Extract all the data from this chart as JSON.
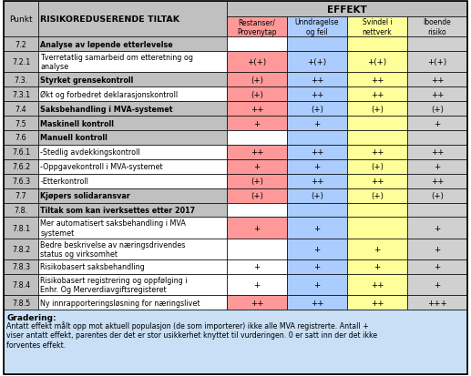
{
  "title": "EFFEKT",
  "col_headers_main": [
    "Punkt",
    "RISIKOREDUSERENDE TILTAK"
  ],
  "sub_headers": [
    "Restanser/\nProvenytap",
    "Unndragelse\nog feil",
    "Svindel i\nnettverk",
    "Iboende\nrisiko"
  ],
  "sub_header_colors": [
    "#ff9999",
    "#aaccff",
    "#ffff99",
    "#d0d0d0"
  ],
  "rows": [
    {
      "punkt": "7.2",
      "tiltak": "Analyse av løpende etterlevelse",
      "bold": true,
      "vals": [
        "",
        "",
        "",
        ""
      ],
      "row_color": [
        "#ffffff",
        "#aaccff",
        "#ffff99",
        "#d0d0d0"
      ]
    },
    {
      "punkt": "7.2.1",
      "tiltak": "Tverretatlig samarbeid om etteretning og\nanalyse",
      "bold": false,
      "vals": [
        "+(+)",
        "+(+)",
        "+(+)",
        "+(+)"
      ],
      "row_color": [
        "#ff9999",
        "#aaccff",
        "#ffff99",
        "#d0d0d0"
      ]
    },
    {
      "punkt": "7.3.",
      "tiltak": "Styrket grensekontroll",
      "bold": true,
      "vals": [
        "(+)",
        "++",
        "++",
        "++"
      ],
      "row_color": [
        "#ff9999",
        "#aaccff",
        "#ffff99",
        "#d0d0d0"
      ]
    },
    {
      "punkt": "7.3.1",
      "tiltak": "Økt og forbedret deklarasjonskontroll",
      "bold": false,
      "vals": [
        "(+)",
        "++",
        "++",
        "++"
      ],
      "row_color": [
        "#ff9999",
        "#aaccff",
        "#ffff99",
        "#d0d0d0"
      ]
    },
    {
      "punkt": "7.4",
      "tiltak": "Saksbehandling i MVA-systemet",
      "bold": true,
      "vals": [
        "++",
        "(+)",
        "(+)",
        "(+)"
      ],
      "row_color": [
        "#ff9999",
        "#aaccff",
        "#ffff99",
        "#d0d0d0"
      ]
    },
    {
      "punkt": "7.5",
      "tiltak": "Maskinell kontroll",
      "bold": true,
      "vals": [
        "+",
        "+",
        "",
        "+"
      ],
      "row_color": [
        "#ff9999",
        "#aaccff",
        "#ffff99",
        "#d0d0d0"
      ]
    },
    {
      "punkt": "7.6",
      "tiltak": "Manuell kontroll",
      "bold": true,
      "vals": [
        "",
        "",
        "",
        ""
      ],
      "row_color": [
        "#ffffff",
        "#aaccff",
        "#ffff99",
        "#d0d0d0"
      ]
    },
    {
      "punkt": "7.6.1",
      "tiltak": "-Stedlig avdekkingskontroll",
      "bold": false,
      "vals": [
        "++",
        "++",
        "++",
        "++"
      ],
      "row_color": [
        "#ff9999",
        "#aaccff",
        "#ffff99",
        "#d0d0d0"
      ]
    },
    {
      "punkt": "7.6.2",
      "tiltak": "-Oppgavekontroll i MVA-systemet",
      "bold": false,
      "vals": [
        "+",
        "+",
        "(+)",
        "+"
      ],
      "row_color": [
        "#ff9999",
        "#aaccff",
        "#ffff99",
        "#d0d0d0"
      ]
    },
    {
      "punkt": "7.6.3",
      "tiltak": "-Etterkontroll",
      "bold": false,
      "vals": [
        "(+)",
        "++",
        "++",
        "++"
      ],
      "row_color": [
        "#ff9999",
        "#aaccff",
        "#ffff99",
        "#d0d0d0"
      ]
    },
    {
      "punkt": "7.7",
      "tiltak": "Kjøpers solidaransvar",
      "bold": true,
      "vals": [
        "(+)",
        "(+)",
        "(+)",
        "(+)"
      ],
      "row_color": [
        "#ff9999",
        "#aaccff",
        "#ffff99",
        "#d0d0d0"
      ]
    },
    {
      "punkt": "7.8.",
      "tiltak": "Tiltak som kan iverksettes etter 2017",
      "bold": true,
      "vals": [
        "",
        "",
        "",
        ""
      ],
      "row_color": [
        "#ffffff",
        "#aaccff",
        "#ffff99",
        "#d0d0d0"
      ]
    },
    {
      "punkt": "7.8.1",
      "tiltak": "Mer automatisert saksbehandling i MVA\nsystemet",
      "bold": false,
      "vals": [
        "+",
        "+",
        "",
        "+"
      ],
      "row_color": [
        "#ff9999",
        "#aaccff",
        "#ffff99",
        "#d0d0d0"
      ]
    },
    {
      "punkt": "7.8.2",
      "tiltak": "Bedre beskrivelse av næringsdrivendes\nstatus og virksomhet",
      "bold": false,
      "vals": [
        "",
        "+",
        "+",
        "+"
      ],
      "row_color": [
        "#ffffff",
        "#aaccff",
        "#ffff99",
        "#d0d0d0"
      ]
    },
    {
      "punkt": "7.8.3",
      "tiltak": "Risikobasert saksbehandling",
      "bold": false,
      "vals": [
        "+",
        "+",
        "+",
        "+"
      ],
      "row_color": [
        "#ffffff",
        "#aaccff",
        "#ffff99",
        "#d0d0d0"
      ]
    },
    {
      "punkt": "7.8.4",
      "tiltak": "Risikobasert registrering og oppfølging i\nEnhr. Og Merverdiavgiftsregisteret",
      "bold": false,
      "vals": [
        "+",
        "+",
        "++",
        "+"
      ],
      "row_color": [
        "#ffffff",
        "#aaccff",
        "#ffff99",
        "#d0d0d0"
      ]
    },
    {
      "punkt": "7.8.5",
      "tiltak": "Ny innrapporteringsløsning for næringslivet",
      "bold": false,
      "vals": [
        "++",
        "++",
        "++",
        "+++"
      ],
      "row_color": [
        "#ff9999",
        "#aaccff",
        "#ffff99",
        "#d0d0d0"
      ]
    }
  ],
  "footer_title": "Gradering:",
  "footer_text": "Antatt effekt målt opp mot aktuell populasjon (de som importerer) ikke alle MVA registrerte. Antall +\nviser antatt effekt, parentes der det er stor usikkerhet knyttet til vurderingen. 0 er satt inn der det ikke\nforventes effekt.",
  "gray": "#c0c0c0",
  "white": "#ffffff",
  "footer_bg": "#c8dff5"
}
